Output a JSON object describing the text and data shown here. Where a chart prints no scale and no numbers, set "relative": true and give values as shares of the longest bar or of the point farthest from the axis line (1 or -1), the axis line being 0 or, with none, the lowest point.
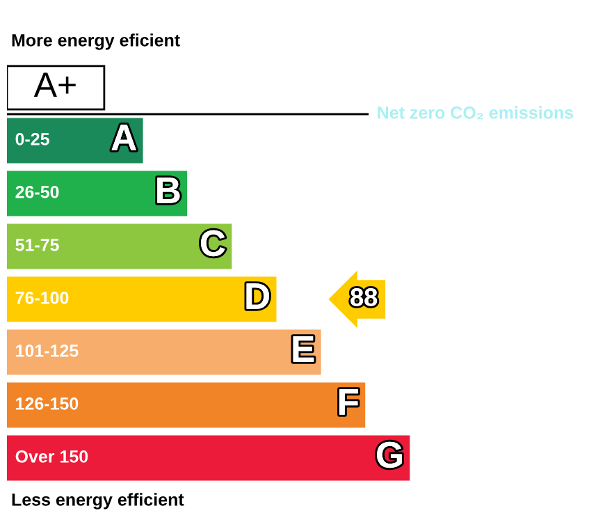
{
  "chart_data": {
    "type": "bar",
    "orientation": "horizontal",
    "relative": true,
    "title": "More energy eficient",
    "categories": [
      "A+",
      "A",
      "B",
      "C",
      "D",
      "E",
      "F",
      "G"
    ],
    "values": [
      0.242,
      0.336,
      0.446,
      0.557,
      0.668,
      0.779,
      0.889,
      1
    ],
    "colors": [
      "#ffffff",
      "#1b8a5a",
      "#21b14c",
      "#8dc73f",
      "#ffcc00",
      "#f7ad6b",
      "#f08427",
      "#ed1b3a"
    ],
    "annotations": [
      "Net zero CO₂ emissions",
      "0-25",
      "26-50",
      "51-75",
      "76-100",
      "101-125",
      "126-150",
      "Over 150",
      {
        "text": "88",
        "x": 0.668,
        "y": "D"
      },
      "Less energy efficient"
    ]
  }
}
